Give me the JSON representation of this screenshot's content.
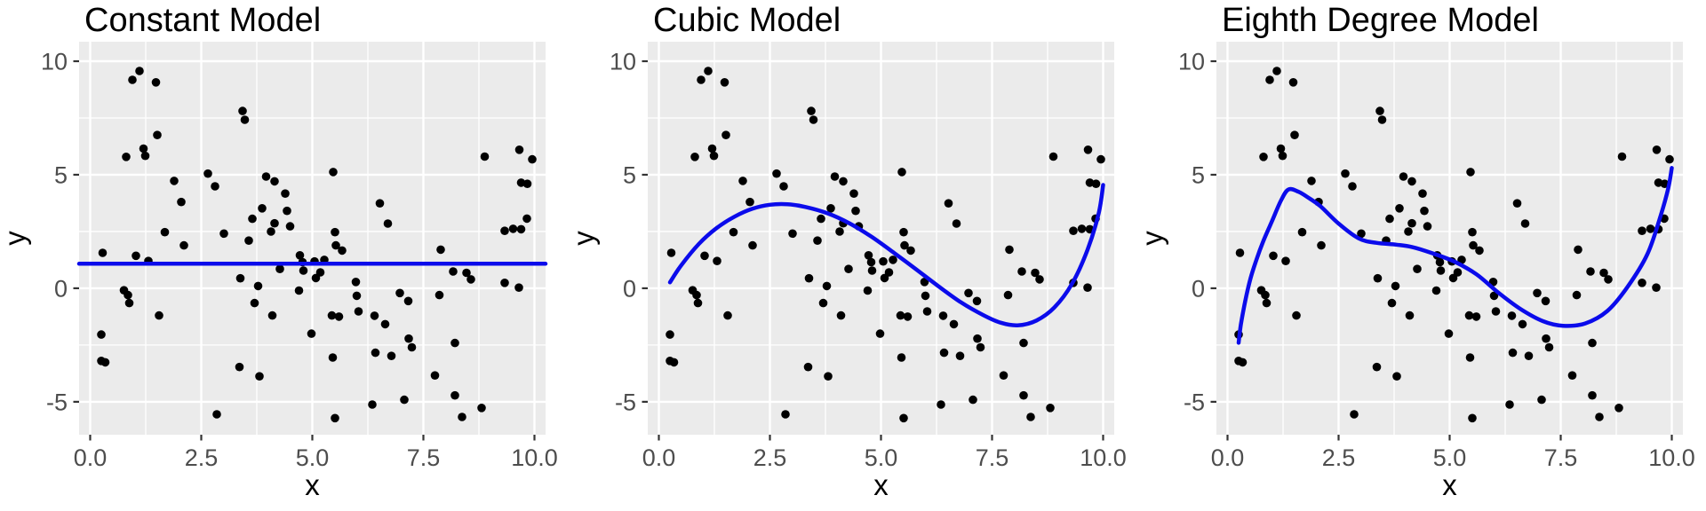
{
  "figure": {
    "background": "#ffffff",
    "panel_background": "#EBEBEB",
    "grid_color": "#FFFFFF",
    "point_color": "#000000",
    "line_color": "#0B0BEB",
    "tick_label_color": "#4D4D4D",
    "tick_mark_color": "#333333",
    "axis_title_color": "#000000",
    "title_color": "#000000"
  },
  "chart_data": {
    "type": "scatter",
    "xlabel": "x",
    "ylabel": "y",
    "xlim": [
      -0.25,
      10.25
    ],
    "ylim": [
      -6.45,
      10.86
    ],
    "x_ticks": [
      0,
      2.5,
      5,
      7.5,
      10
    ],
    "x_tick_labels": [
      "0.0",
      "2.5",
      "5.0",
      "7.5",
      "10.0"
    ],
    "x_minor_gridlines": [
      1.25,
      3.75,
      6.25,
      8.75
    ],
    "y_ticks": [
      10,
      5,
      0,
      -5
    ],
    "y_tick_labels": [
      "10",
      "5",
      "0",
      "-5"
    ],
    "y_minor_gridlines": [
      7.5,
      2.5,
      -2.5
    ],
    "grid": true,
    "legend": "none",
    "points": [
      [
        1.11,
        9.57
      ],
      [
        0.95,
        9.18
      ],
      [
        1.48,
        9.07
      ],
      [
        3.43,
        7.81
      ],
      [
        3.48,
        7.42
      ],
      [
        1.51,
        6.75
      ],
      [
        1.2,
        6.15
      ],
      [
        1.24,
        5.83
      ],
      [
        0.81,
        5.79
      ],
      [
        2.65,
        5.05
      ],
      [
        1.89,
        4.73
      ],
      [
        2.81,
        4.49
      ],
      [
        3.96,
        4.92
      ],
      [
        4.15,
        4.71
      ],
      [
        4.39,
        4.17
      ],
      [
        2.05,
        3.8
      ],
      [
        3.87,
        3.52
      ],
      [
        4.43,
        3.41
      ],
      [
        3.65,
        3.06
      ],
      [
        4.15,
        2.86
      ],
      [
        4.5,
        2.73
      ],
      [
        1.68,
        2.47
      ],
      [
        3.01,
        2.41
      ],
      [
        4.07,
        2.5
      ],
      [
        3.57,
        2.1
      ],
      [
        5.47,
        5.12
      ],
      [
        8.88,
        5.8
      ],
      [
        9.66,
        6.1
      ],
      [
        9.95,
        5.68
      ],
      [
        9.7,
        4.65
      ],
      [
        9.84,
        4.6
      ],
      [
        6.52,
        3.74
      ],
      [
        6.7,
        2.85
      ],
      [
        9.83,
        3.07
      ],
      [
        9.33,
        2.53
      ],
      [
        9.52,
        2.62
      ],
      [
        9.7,
        2.6
      ],
      [
        5.51,
        2.47
      ],
      [
        0.28,
        1.56
      ],
      [
        2.11,
        1.89
      ],
      [
        1.03,
        1.43
      ],
      [
        1.31,
        1.2
      ],
      [
        4.27,
        0.85
      ],
      [
        4.72,
        1.45
      ],
      [
        4.78,
        1.15
      ],
      [
        4.8,
        0.78
      ],
      [
        3.38,
        0.44
      ],
      [
        3.78,
        0.1
      ],
      [
        0.76,
        -0.09
      ],
      [
        0.85,
        -0.3
      ],
      [
        0.88,
        -0.65
      ],
      [
        3.7,
        -0.65
      ],
      [
        1.55,
        -1.2
      ],
      [
        4.1,
        -1.2
      ],
      [
        0.25,
        -2.04
      ],
      [
        4.98,
        -2.0
      ],
      [
        0.25,
        -3.2
      ],
      [
        0.34,
        -3.26
      ],
      [
        3.36,
        -3.47
      ],
      [
        3.81,
        -3.88
      ],
      [
        2.85,
        -5.55
      ],
      [
        4.7,
        -0.1
      ],
      [
        5.53,
        1.89
      ],
      [
        5.67,
        1.66
      ],
      [
        5.05,
        1.18
      ],
      [
        5.27,
        1.25
      ],
      [
        5.18,
        0.7
      ],
      [
        5.08,
        0.45
      ],
      [
        7.89,
        1.7
      ],
      [
        8.17,
        0.74
      ],
      [
        8.47,
        0.68
      ],
      [
        8.57,
        0.39
      ],
      [
        9.33,
        0.24
      ],
      [
        9.65,
        0.03
      ],
      [
        5.98,
        0.28
      ],
      [
        6.0,
        -0.33
      ],
      [
        7.86,
        -0.3
      ],
      [
        6.97,
        -0.21
      ],
      [
        7.16,
        -0.56
      ],
      [
        6.04,
        -1.02
      ],
      [
        5.44,
        -1.2
      ],
      [
        5.6,
        -1.25
      ],
      [
        6.4,
        -1.21
      ],
      [
        6.64,
        -1.58
      ],
      [
        7.17,
        -2.22
      ],
      [
        7.24,
        -2.6
      ],
      [
        8.21,
        -2.41
      ],
      [
        5.46,
        -3.05
      ],
      [
        6.42,
        -2.84
      ],
      [
        6.78,
        -2.98
      ],
      [
        7.76,
        -3.84
      ],
      [
        8.21,
        -4.72
      ],
      [
        6.35,
        -5.12
      ],
      [
        7.07,
        -4.91
      ],
      [
        8.81,
        -5.27
      ],
      [
        5.51,
        -5.72
      ],
      [
        8.37,
        -5.67
      ]
    ],
    "panels": [
      {
        "title": "Constant Model",
        "curve": [
          [
            -0.25,
            1.08
          ],
          [
            10.25,
            1.08
          ]
        ]
      },
      {
        "title": "Cubic Model",
        "curve": [
          [
            0.25,
            0.26
          ],
          [
            0.5,
            1.0
          ],
          [
            0.9,
            1.95
          ],
          [
            1.3,
            2.65
          ],
          [
            1.7,
            3.15
          ],
          [
            2.1,
            3.5
          ],
          [
            2.5,
            3.68
          ],
          [
            2.9,
            3.7
          ],
          [
            3.3,
            3.58
          ],
          [
            3.8,
            3.3
          ],
          [
            4.3,
            2.85
          ],
          [
            4.8,
            2.25
          ],
          [
            5.3,
            1.55
          ],
          [
            5.8,
            0.82
          ],
          [
            6.3,
            0.08
          ],
          [
            6.8,
            -0.62
          ],
          [
            7.3,
            -1.18
          ],
          [
            7.7,
            -1.52
          ],
          [
            8.1,
            -1.63
          ],
          [
            8.5,
            -1.42
          ],
          [
            8.9,
            -0.85
          ],
          [
            9.3,
            0.2
          ],
          [
            9.65,
            1.7
          ],
          [
            9.9,
            3.3
          ],
          [
            10.0,
            4.55
          ]
        ]
      },
      {
        "title": "Eighth Degree Model",
        "curve": [
          [
            0.25,
            -2.4
          ],
          [
            0.3,
            -1.6
          ],
          [
            0.4,
            -0.55
          ],
          [
            0.52,
            0.45
          ],
          [
            0.65,
            1.25
          ],
          [
            0.8,
            2.05
          ],
          [
            1.0,
            2.95
          ],
          [
            1.2,
            3.85
          ],
          [
            1.37,
            4.35
          ],
          [
            1.6,
            4.25
          ],
          [
            1.85,
            3.95
          ],
          [
            2.1,
            3.6
          ],
          [
            2.5,
            2.85
          ],
          [
            2.95,
            2.2
          ],
          [
            3.35,
            2.0
          ],
          [
            3.8,
            1.92
          ],
          [
            4.15,
            1.82
          ],
          [
            4.6,
            1.55
          ],
          [
            5.1,
            1.18
          ],
          [
            5.6,
            0.62
          ],
          [
            6.1,
            -0.2
          ],
          [
            6.6,
            -0.92
          ],
          [
            7.1,
            -1.45
          ],
          [
            7.55,
            -1.65
          ],
          [
            8.05,
            -1.55
          ],
          [
            8.55,
            -1.0
          ],
          [
            9.0,
            0.05
          ],
          [
            9.45,
            1.5
          ],
          [
            9.75,
            3.2
          ],
          [
            9.92,
            4.4
          ],
          [
            10.0,
            5.3
          ]
        ]
      }
    ]
  }
}
